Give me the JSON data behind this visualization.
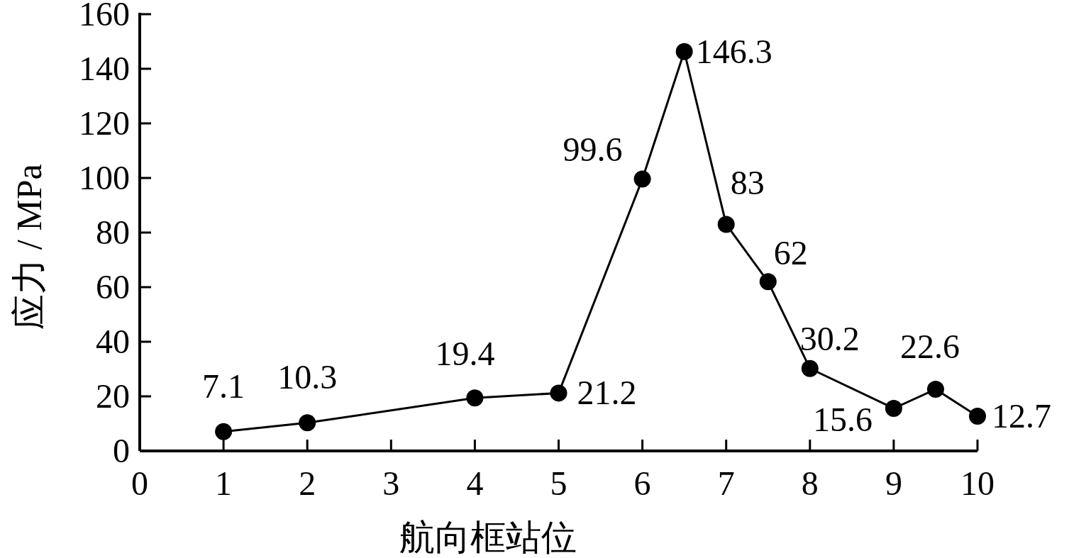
{
  "chart_data": {
    "type": "line",
    "xlabel": "航向框站位",
    "ylabel": "应力 / MPa",
    "x": [
      1,
      2,
      4,
      5,
      6,
      6.5,
      7,
      7.5,
      8,
      9,
      9.5,
      10
    ],
    "series": [
      {
        "color": "#000000",
        "values": [
          7.1,
          10.3,
          19.4,
          21.2,
          99.6,
          146.3,
          83,
          62,
          30.2,
          15.6,
          22.6,
          12.7
        ]
      }
    ],
    "xlim": [
      0,
      10
    ],
    "xticks": [
      0,
      1,
      2,
      3,
      4,
      5,
      6,
      7,
      8,
      9,
      10
    ],
    "ylim": [
      0,
      160
    ],
    "yticks": [
      0,
      20,
      40,
      60,
      80,
      100,
      120,
      140,
      160
    ],
    "marker": "circle",
    "line_style": "solid",
    "data_labels": true
  }
}
